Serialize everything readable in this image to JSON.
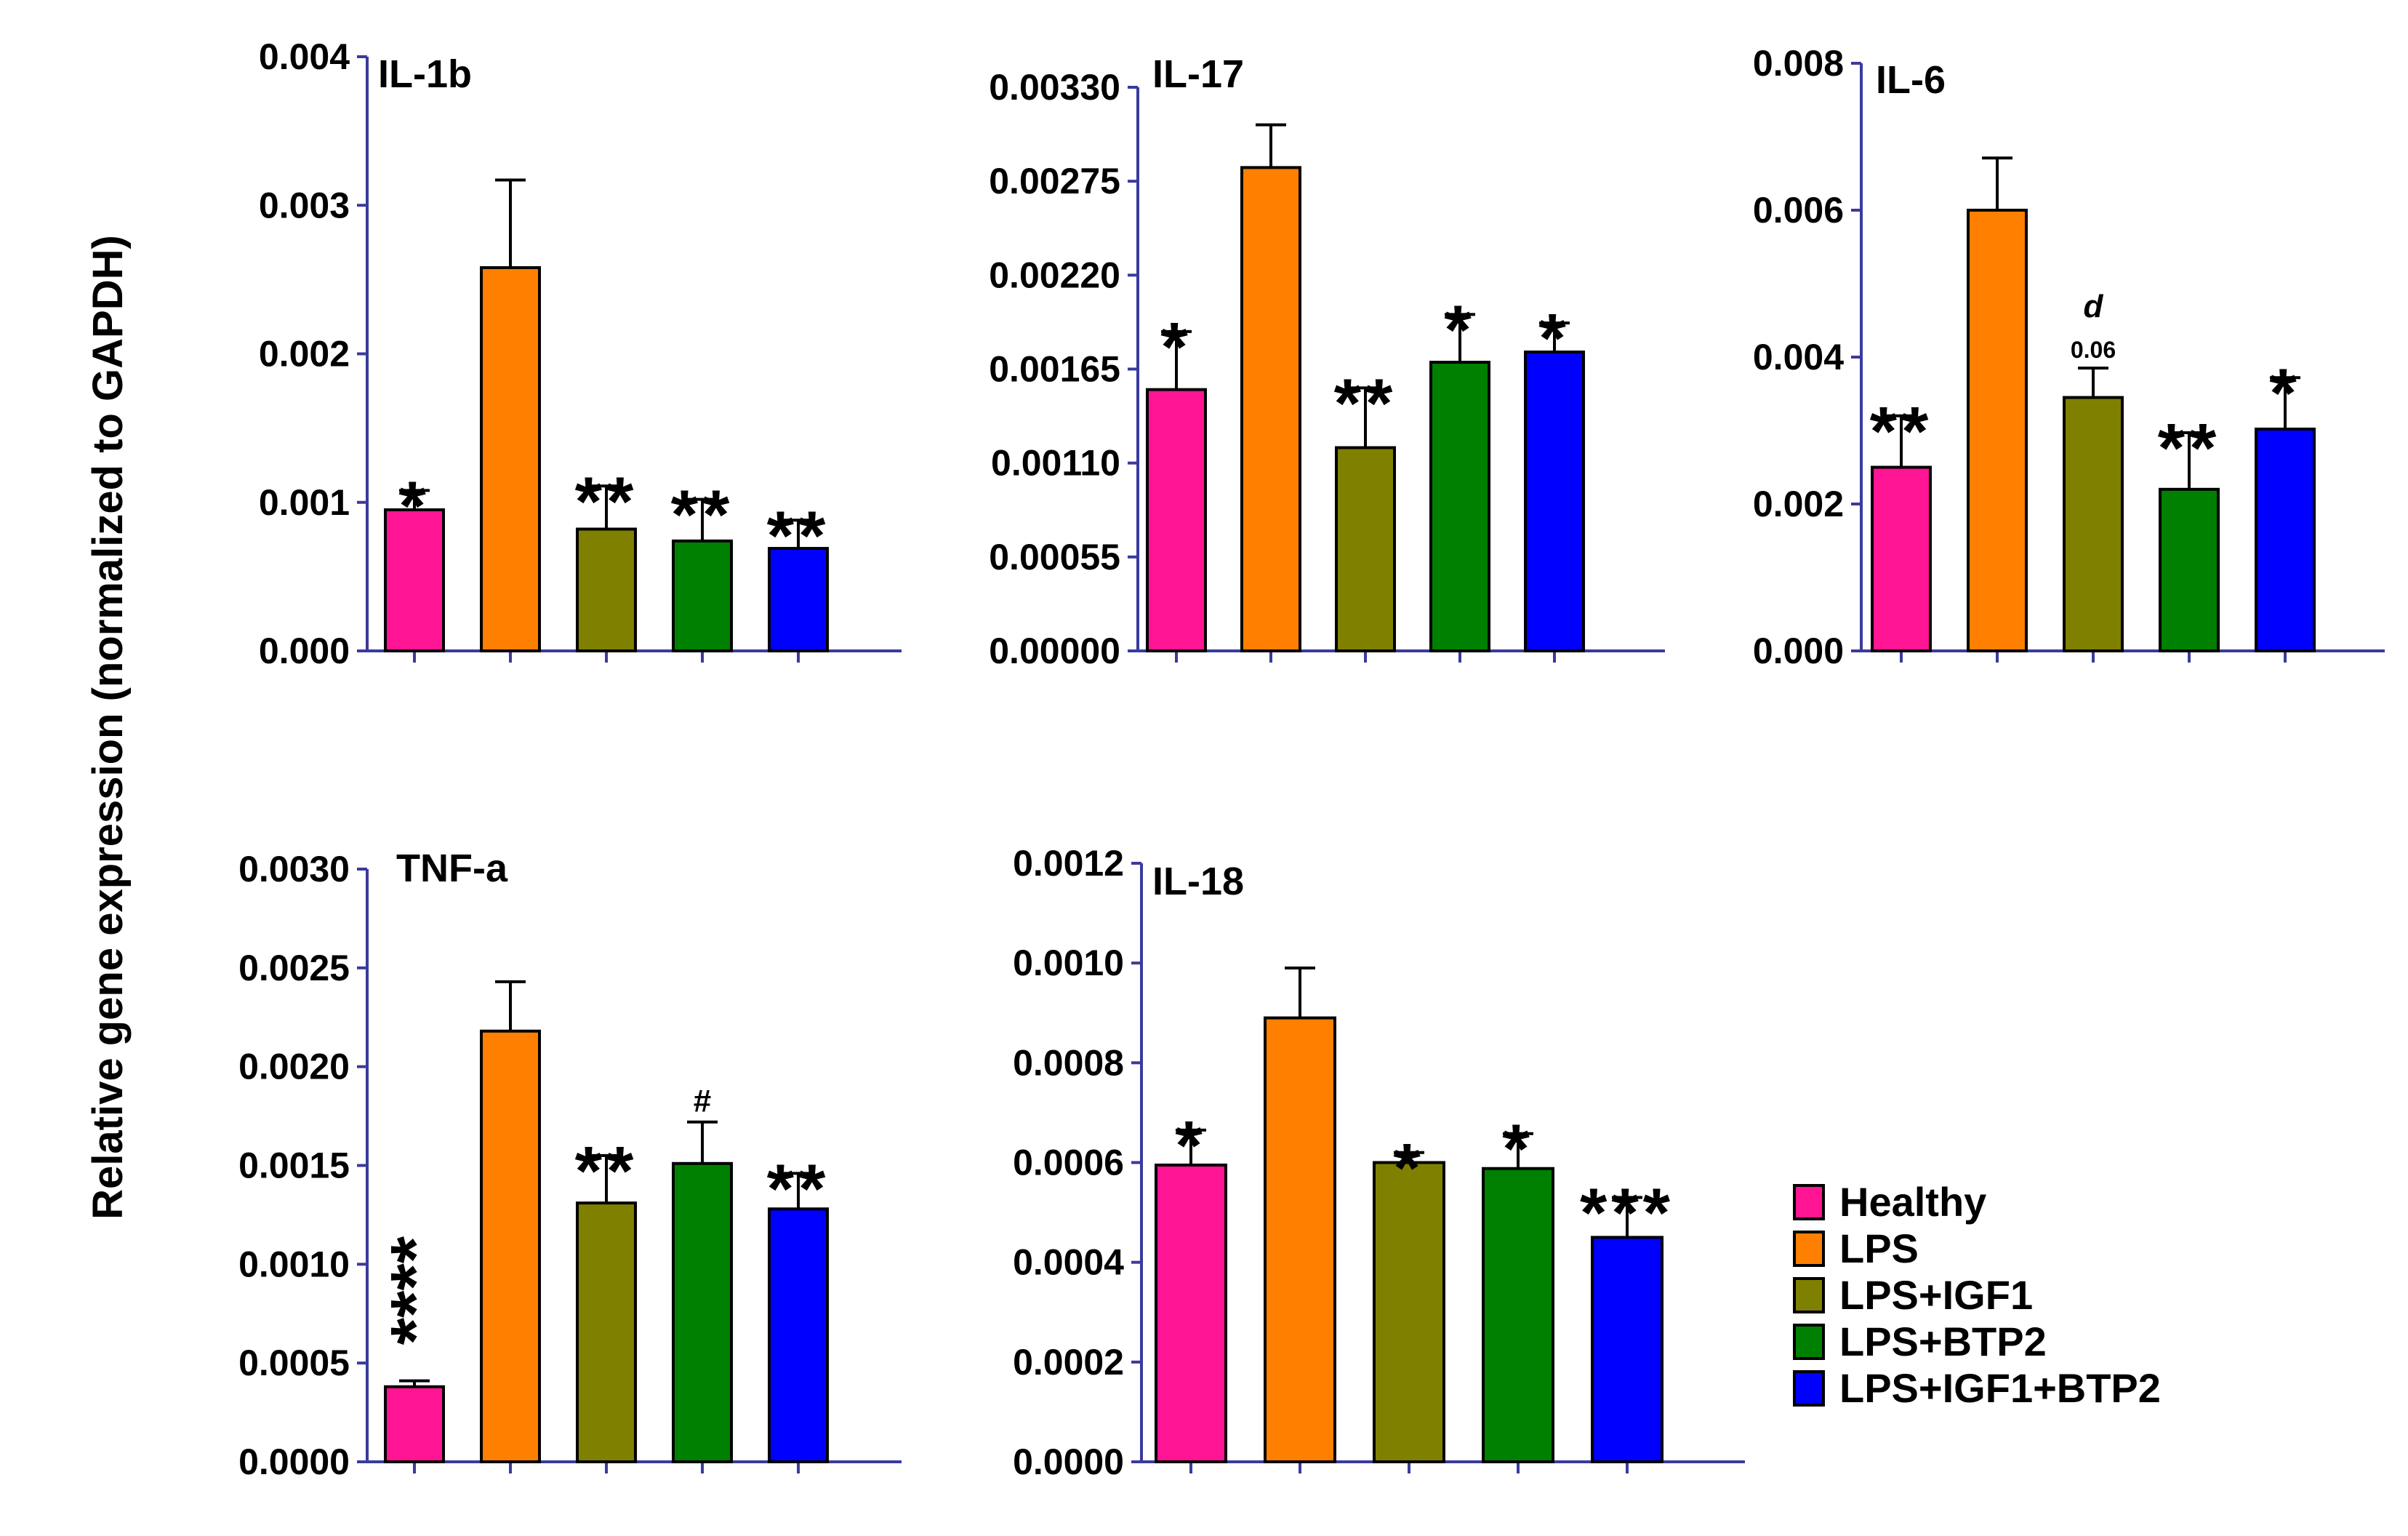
{
  "figure": {
    "ylabel": "Relative gene expression (normalized to GAPDH)"
  },
  "legend": [
    {
      "label": "Healthy",
      "color": "#FF1493"
    },
    {
      "label": "LPS",
      "color": "#FF7F00"
    },
    {
      "label": "LPS+IGF1",
      "color": "#808000"
    },
    {
      "label": "LPS+BTP2",
      "color": "#008000"
    },
    {
      "label": "LPS+IGF1+BTP2",
      "color": "#0000FF"
    }
  ],
  "chart_data": [
    {
      "type": "bar",
      "title": "IL-1b",
      "categories": [
        "Healthy",
        "LPS",
        "LPS+IGF1",
        "LPS+BTP2",
        "LPS+IGF1+BTP2"
      ],
      "values": [
        0.00095,
        0.00258,
        0.00082,
        0.00074,
        0.00069
      ],
      "errors": [
        0.00013,
        0.00059,
        0.00029,
        0.00028,
        0.00019
      ],
      "significance": [
        "*",
        "",
        "**",
        "**",
        "**"
      ],
      "annotations": [],
      "ylim": [
        0,
        0.004
      ],
      "yticks": [
        "0.000",
        "0.001",
        "0.002",
        "0.003",
        "0.004"
      ],
      "ytick_values": [
        0,
        0.001,
        0.002,
        0.003,
        0.004
      ]
    },
    {
      "type": "bar",
      "title": "IL-17",
      "categories": [
        "Healthy",
        "LPS",
        "LPS+IGF1",
        "LPS+BTP2",
        "LPS+IGF1+BTP2"
      ],
      "values": [
        0.00153,
        0.00283,
        0.00119,
        0.00169,
        0.00175
      ],
      "errors": [
        0.00034,
        0.00025,
        0.00035,
        0.00028,
        0.00017
      ],
      "significance": [
        "*",
        "",
        "**",
        "*",
        "*"
      ],
      "annotations": [],
      "ylim": [
        0,
        0.0033
      ],
      "yticks": [
        "0.00000",
        "0.00055",
        "0.00110",
        "0.00165",
        "0.00220",
        "0.00275",
        "0.00330"
      ],
      "ytick_values": [
        0,
        0.00055,
        0.0011,
        0.00165,
        0.0022,
        0.00275,
        0.0033
      ]
    },
    {
      "type": "bar",
      "title": "IL-6",
      "categories": [
        "Healthy",
        "LPS",
        "LPS+IGF1",
        "LPS+BTP2",
        "LPS+IGF1+BTP2"
      ],
      "values": [
        0.0025,
        0.006,
        0.00345,
        0.0022,
        0.00302
      ],
      "errors": [
        0.0007,
        0.00071,
        0.0004,
        0.00077,
        0.0007
      ],
      "significance": [
        "**",
        "",
        "",
        "**",
        "*"
      ],
      "annotations": [
        {
          "bar": 2,
          "note": "0.06",
          "letter": "d"
        }
      ],
      "ylim": [
        0,
        0.008
      ],
      "yticks": [
        "0.000",
        "0.002",
        "0.004",
        "0.006",
        "0.008"
      ],
      "ytick_values": [
        0,
        0.002,
        0.004,
        0.006,
        0.008
      ]
    },
    {
      "type": "bar",
      "title": "TNF-a",
      "categories": [
        "Healthy",
        "LPS",
        "LPS+IGF1",
        "LPS+BTP2",
        "LPS+IGF1+BTP2"
      ],
      "values": [
        0.00038,
        0.00218,
        0.00131,
        0.00151,
        0.00128
      ],
      "errors": [
        3e-05,
        0.00025,
        0.00024,
        0.00021,
        0.00018
      ],
      "significance": [
        "****",
        "",
        "**",
        "#",
        "**"
      ],
      "annotations": [],
      "ylim": [
        0,
        0.003
      ],
      "yticks": [
        "0.0000",
        "0.0005",
        "0.0010",
        "0.0015",
        "0.0020",
        "0.0025",
        "0.0030"
      ],
      "ytick_values": [
        0,
        0.0005,
        0.001,
        0.0015,
        0.002,
        0.0025,
        0.003
      ]
    },
    {
      "type": "bar",
      "title": "IL-18",
      "categories": [
        "Healthy",
        "LPS",
        "LPS+IGF1",
        "LPS+BTP2",
        "LPS+IGF1+BTP2"
      ],
      "values": [
        0.000595,
        0.00089,
        0.0006,
        0.000588,
        0.00045
      ],
      "errors": [
        7e-05,
        0.0001,
        2e-05,
        7e-05,
        8e-05
      ],
      "significance": [
        "*",
        "",
        "*",
        "*",
        "***"
      ],
      "annotations": [],
      "ylim": [
        0,
        0.0012
      ],
      "yticks": [
        "0.0000",
        "0.0002",
        "0.0004",
        "0.0006",
        "0.0008",
        "0.0010",
        "0.0012"
      ],
      "ytick_values": [
        0,
        0.0002,
        0.0004,
        0.0006,
        0.0008,
        0.001,
        0.0012
      ]
    }
  ]
}
